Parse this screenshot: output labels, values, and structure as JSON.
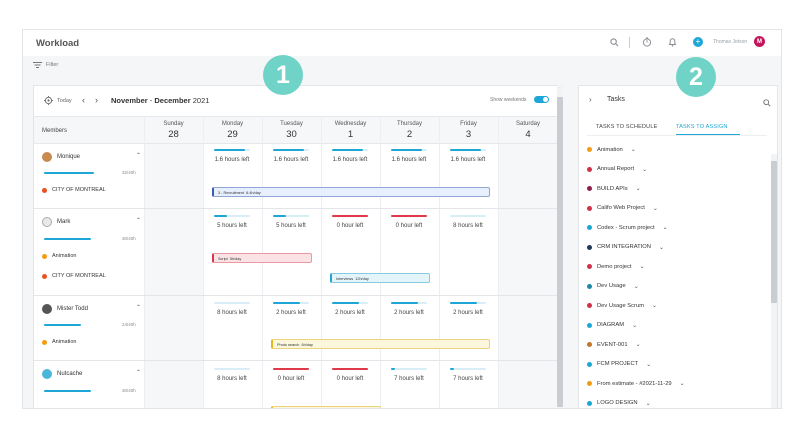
{
  "app": {
    "title": "Workload",
    "user_name": "Thomas Jetson",
    "user_initial": "M",
    "filter_label": "Filter"
  },
  "calendar": {
    "today_label": "Today",
    "range_start": "November",
    "range_end": "December",
    "range_year": "2021",
    "show_weekends_label": "Show weekends",
    "members_label": "Members",
    "days": [
      {
        "name": "Sunday",
        "num": "28"
      },
      {
        "name": "Monday",
        "num": "29"
      },
      {
        "name": "Tuesday",
        "num": "30"
      },
      {
        "name": "Wednesday",
        "num": "1"
      },
      {
        "name": "Thursday",
        "num": "2"
      },
      {
        "name": "Friday",
        "num": "3"
      },
      {
        "name": "Saturday",
        "num": "4"
      }
    ],
    "members": [
      {
        "name": "Monique",
        "capacity": "32/40h",
        "capacity_fraction": 0.8,
        "tags": [
          {
            "label": "CITY OF MONTREAL",
            "color": "#e8521f"
          }
        ],
        "hours": [
          "1.6 hours left",
          "1.6 hours left",
          "1.6 hours left",
          "1.6 hours left",
          "1.6 hours left"
        ],
        "load": [
          0.85,
          0.85,
          0.85,
          0.85,
          0.85
        ],
        "events": [
          {
            "label": "3 - Recruitment",
            "rate": "6.4h/day",
            "color": "blue"
          }
        ]
      },
      {
        "name": "Mark",
        "capacity": "30/40h",
        "capacity_fraction": 0.75,
        "tags": [
          {
            "label": "Animation",
            "color": "#f39c12"
          },
          {
            "label": "CITY OF MONTREAL",
            "color": "#e8521f"
          }
        ],
        "hours": [
          "5 hours left",
          "5 hours left",
          "0 hour left",
          "0 hour left",
          "8 hours left"
        ],
        "load": [
          0.35,
          0.35,
          1.0,
          1.0,
          0.0
        ],
        "events": [
          {
            "label": "Script",
            "rate": "5h/day",
            "color": "red"
          },
          {
            "label": "Interviews",
            "rate": "12h/day",
            "color": "cyan"
          }
        ]
      },
      {
        "name": "Mister Todd",
        "capacity": "24/40h",
        "capacity_fraction": 0.6,
        "tags": [
          {
            "label": "Animation",
            "color": "#f39c12"
          }
        ],
        "hours": [
          "8 hours left",
          "2 hours left",
          "2 hours left",
          "2 hours left",
          "2 hours left"
        ],
        "load": [
          0.0,
          0.75,
          0.75,
          0.75,
          0.75
        ],
        "events": [
          {
            "label": "Photo search",
            "rate": "6h/day",
            "color": "yellow"
          }
        ]
      },
      {
        "name": "Nutcache",
        "capacity": "30/40h",
        "capacity_fraction": 0.75,
        "tags": [],
        "hours": [
          "8 hours left",
          "0 hour left",
          "0 hour left",
          "7 hours left",
          "7 hours left"
        ],
        "load": [
          0.0,
          1.0,
          1.0,
          0.12,
          0.12
        ],
        "events": []
      }
    ]
  },
  "tasks_panel": {
    "title": "Tasks",
    "tab_schedule": "TASKS TO SCHEDULE",
    "tab_assign": "TASKS TO ASSIGN",
    "projects": [
      {
        "label": "Animation",
        "color": "#f39c12"
      },
      {
        "label": "Annual Report",
        "color": "#d0324a"
      },
      {
        "label": "BUILD APIs",
        "color": "#8e1f4c"
      },
      {
        "label": "Califo Web Project",
        "color": "#d0324a"
      },
      {
        "label": "Codex - Scrum project",
        "color": "#1ea7d6"
      },
      {
        "label": "CRM INTEGRATION",
        "color": "#23395b"
      },
      {
        "label": "Demo project",
        "color": "#d0324a"
      },
      {
        "label": "Dev Usage",
        "color": "#1c8aa8"
      },
      {
        "label": "Dev Usage Scrum",
        "color": "#d0324a"
      },
      {
        "label": "DIAGRAM",
        "color": "#1ea7d6"
      },
      {
        "label": "EVENT-001",
        "color": "#c0762b"
      },
      {
        "label": "FCM PROJECT",
        "color": "#1ea7d6"
      },
      {
        "label": "From estimate - #2021-11-29",
        "color": "#f39c12"
      },
      {
        "label": "LOGO DESIGN",
        "color": "#1ea7d6"
      }
    ]
  },
  "badges": {
    "one": "1",
    "two": "2"
  },
  "colors": {
    "accent": "#1ea7d6",
    "badge": "#6fd3c7",
    "danger": "#e0394a"
  }
}
